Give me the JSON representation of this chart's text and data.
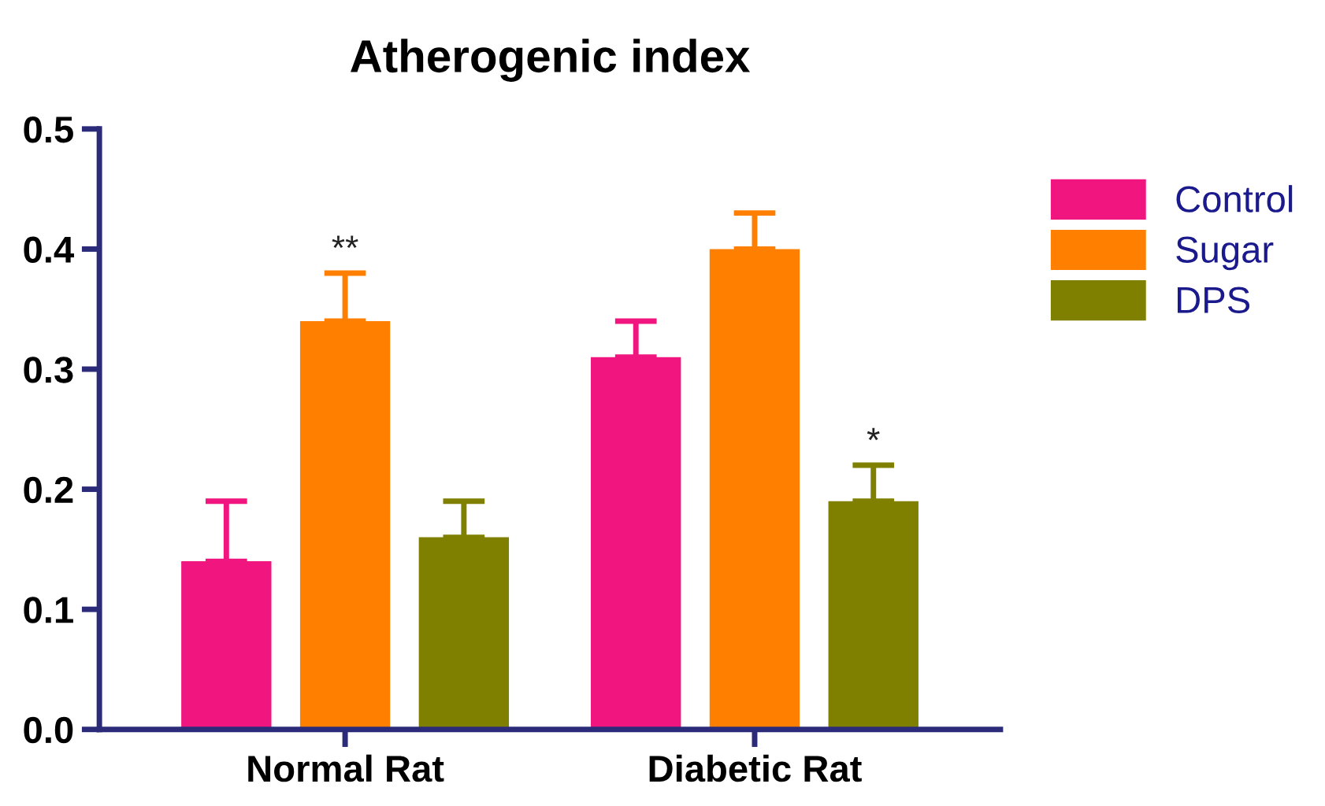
{
  "chart_data": {
    "type": "bar",
    "title": "Atherogenic index",
    "categories": [
      "Normal Rat",
      "Diabetic Rat"
    ],
    "series": [
      {
        "name": "Control",
        "color": "#f0157f",
        "values": [
          0.14,
          0.31
        ],
        "errors": [
          [
            0.14,
            0.19
          ],
          [
            0.31,
            0.34
          ]
        ]
      },
      {
        "name": "Sugar",
        "color": "#ff8000",
        "values": [
          0.34,
          0.4
        ],
        "errors": [
          [
            0.34,
            0.38
          ],
          [
            0.4,
            0.43
          ]
        ],
        "value_labels": [
          "**",
          null
        ]
      },
      {
        "name": "DPS",
        "color": "#808000",
        "values": [
          0.16,
          0.19
        ],
        "errors": [
          [
            0.16,
            0.19
          ],
          [
            0.19,
            0.22
          ]
        ],
        "value_labels": [
          null,
          "*"
        ]
      }
    ],
    "ylim": [
      0,
      0.5
    ],
    "yticks": [
      {
        "value": 0,
        "label": "0.0"
      },
      {
        "value": 0.1,
        "label": "0.1"
      },
      {
        "value": 0.2,
        "label": "0.2"
      },
      {
        "value": 0.3,
        "label": "0.3"
      },
      {
        "value": 0.4,
        "label": "0.4"
      },
      {
        "value": 0.5,
        "label": "0.5"
      }
    ],
    "grid": false,
    "legend": "right"
  }
}
